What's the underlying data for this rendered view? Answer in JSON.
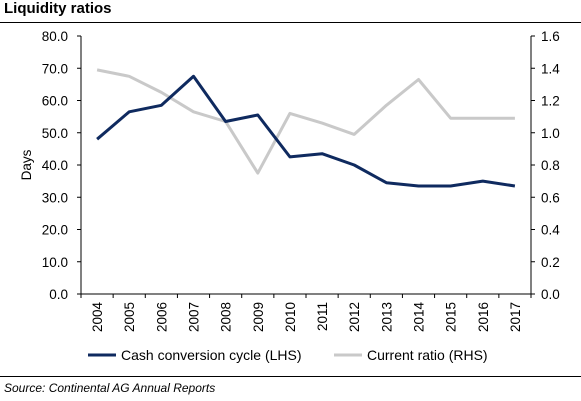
{
  "title": "Liquidity ratios",
  "source": "Source: Continental AG Annual Reports",
  "chart_data": {
    "type": "line",
    "x": [
      "2004",
      "2005",
      "2006",
      "2007",
      "2008",
      "2009",
      "2010",
      "2011",
      "2012",
      "2013",
      "2014",
      "2015",
      "2016",
      "2017"
    ],
    "series": [
      {
        "name": "Cash conversion cycle (LHS)",
        "axis": "left",
        "color": "#0f2a5f",
        "values": [
          48.0,
          56.5,
          58.5,
          67.5,
          53.5,
          55.5,
          42.5,
          43.5,
          40.0,
          34.5,
          33.5,
          33.5,
          35.0,
          33.5
        ]
      },
      {
        "name": "Current ratio (RHS)",
        "axis": "right",
        "color": "#c9c9c9",
        "values": [
          1.39,
          1.35,
          1.25,
          1.13,
          1.07,
          0.75,
          1.12,
          1.06,
          0.99,
          1.17,
          1.33,
          1.09,
          1.09,
          1.09
        ]
      }
    ],
    "ylabel": "Days",
    "ylim": [
      0,
      80
    ],
    "y2lim": [
      0,
      1.6
    ],
    "yticks": [
      "0.0",
      "10.0",
      "20.0",
      "30.0",
      "40.0",
      "50.0",
      "60.0",
      "70.0",
      "80.0"
    ],
    "y2ticks": [
      "0.0",
      "0.2",
      "0.4",
      "0.6",
      "0.8",
      "1.0",
      "1.2",
      "1.4",
      "1.6"
    ],
    "grid": false,
    "legend": "bottom"
  }
}
